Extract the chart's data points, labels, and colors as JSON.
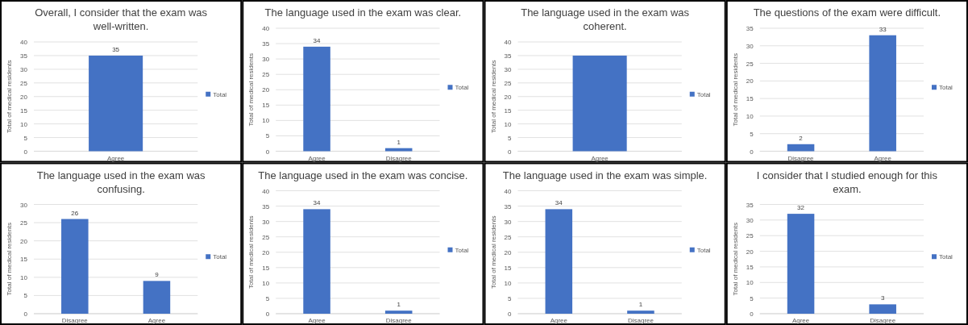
{
  "chart_data": [
    {
      "type": "bar",
      "title": "Overall, I consider that the exam was well-written.",
      "ylabel": "Total of medical residents",
      "categories": [
        "Agree"
      ],
      "series": [
        {
          "name": "Total",
          "color": "#4472c4",
          "values": [
            35
          ]
        }
      ],
      "ylim": [
        0,
        40
      ],
      "yticks": [
        0,
        5,
        10,
        15,
        20,
        25,
        30,
        35,
        40
      ],
      "grid": "y",
      "legend": "right",
      "data_labels": true
    },
    {
      "type": "bar",
      "title": "The language used in the exam was clear.",
      "ylabel": "Total of medical residents",
      "categories": [
        "Agree",
        "Disagree"
      ],
      "series": [
        {
          "name": "Total",
          "color": "#4472c4",
          "values": [
            34,
            1
          ]
        }
      ],
      "ylim": [
        0,
        40
      ],
      "yticks": [
        0,
        5,
        10,
        15,
        20,
        25,
        30,
        35,
        40
      ],
      "grid": "y",
      "legend": "right",
      "data_labels": true
    },
    {
      "type": "bar",
      "title": "The language used in the exam was coherent.",
      "ylabel": "Total of medical residents",
      "categories": [
        "Agree"
      ],
      "series": [
        {
          "name": "Total",
          "color": "#4472c4",
          "values": [
            35
          ]
        }
      ],
      "ylim": [
        0,
        40
      ],
      "yticks": [
        0,
        5,
        10,
        15,
        20,
        25,
        30,
        35,
        40
      ],
      "grid": "y",
      "legend": "right"
    },
    {
      "type": "bar",
      "title": "The questions of the exam were difficult.",
      "ylabel": "Total of medical residents",
      "categories": [
        "Disagree",
        "Agree"
      ],
      "series": [
        {
          "name": "Total",
          "color": "#4472c4",
          "values": [
            2,
            33
          ]
        }
      ],
      "ylim": [
        0,
        35
      ],
      "yticks": [
        0,
        5,
        10,
        15,
        20,
        25,
        30,
        35
      ],
      "grid": "y",
      "legend": "right",
      "data_labels": true
    },
    {
      "type": "bar",
      "title": "The language used in the exam was confusing.",
      "ylabel": "Total of medical residents",
      "categories": [
        "Disagree",
        "Agree"
      ],
      "series": [
        {
          "name": "Total",
          "color": "#4472c4",
          "values": [
            26,
            9
          ]
        }
      ],
      "ylim": [
        0,
        30
      ],
      "yticks": [
        0,
        5,
        10,
        15,
        20,
        25,
        30
      ],
      "grid": "y",
      "legend": "right",
      "data_labels": true
    },
    {
      "type": "bar",
      "title": "The language used in the exam was concise.",
      "ylabel": "Total of medical residents",
      "categories": [
        "Agree",
        "Disagree"
      ],
      "series": [
        {
          "name": "Total",
          "color": "#4472c4",
          "values": [
            34,
            1
          ]
        }
      ],
      "ylim": [
        0,
        40
      ],
      "yticks": [
        0,
        5,
        10,
        15,
        20,
        25,
        30,
        35,
        40
      ],
      "grid": "y",
      "legend": "right",
      "data_labels": true
    },
    {
      "type": "bar",
      "title": "The language used in the exam was simple.",
      "ylabel": "Total of medical residents",
      "categories": [
        "Agree",
        "Disagree"
      ],
      "series": [
        {
          "name": "Total",
          "color": "#4472c4",
          "values": [
            34,
            1
          ]
        }
      ],
      "ylim": [
        0,
        40
      ],
      "yticks": [
        0,
        5,
        10,
        15,
        20,
        25,
        30,
        35,
        40
      ],
      "grid": "y",
      "legend": "right",
      "data_labels": true
    },
    {
      "type": "bar",
      "title": "I consider that I studied enough for this exam.",
      "ylabel": "Total of medical residents",
      "categories": [
        "Agree",
        "Disagree"
      ],
      "series": [
        {
          "name": "Total",
          "color": "#4472c4",
          "values": [
            32,
            3
          ]
        }
      ],
      "ylim": [
        0,
        35
      ],
      "yticks": [
        0,
        5,
        10,
        15,
        20,
        25,
        30,
        35
      ],
      "grid": "y",
      "legend": "right",
      "data_labels": true
    }
  ]
}
